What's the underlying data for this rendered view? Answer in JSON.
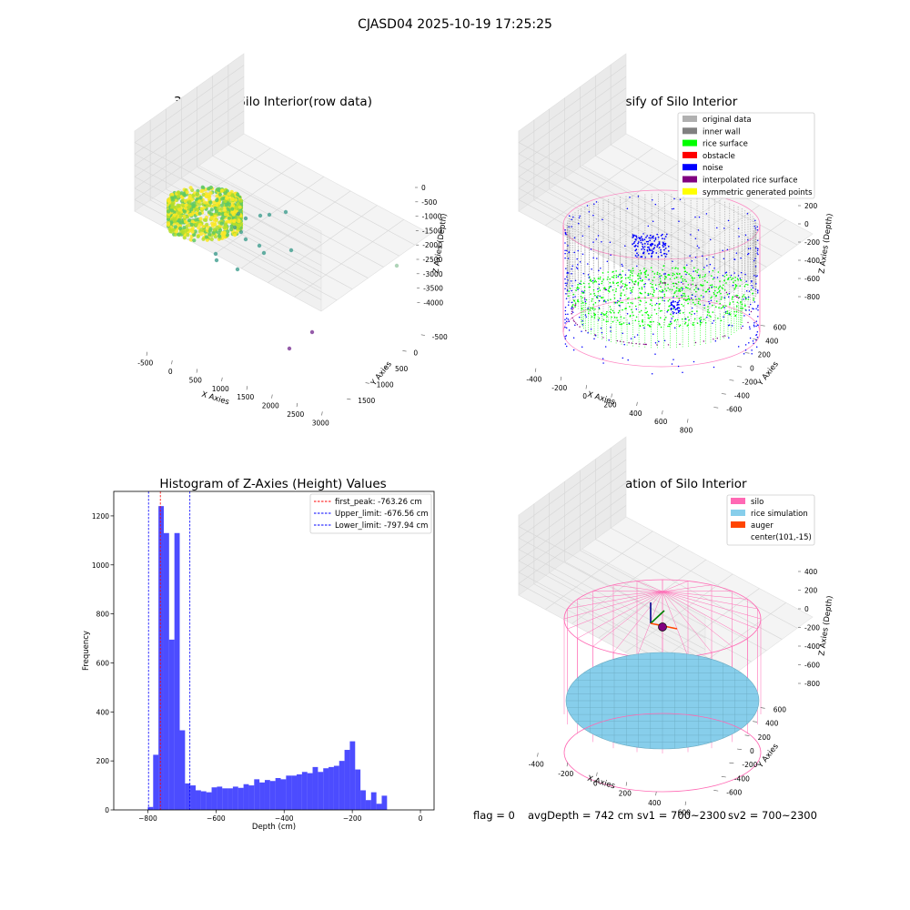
{
  "suptitle": "CJASD04 2025-10-19 17:25:25",
  "footer": {
    "flag": "flag = 0",
    "avg_depth": "avgDepth = 742 cm",
    "sv1": "sv1 = 700~2300",
    "sv2": "sv2 = 700~2300"
  },
  "chart_data": [
    {
      "type": "scatter",
      "title": "3D Plot of Silo Interior(row data)",
      "xlabel": "X Axies",
      "ylabel": "Y Axies",
      "zlabel": "Z Axies (Depth)",
      "x_ticks": [
        "-500",
        "0",
        "500",
        "1000",
        "1500",
        "2000",
        "2500",
        "3000"
      ],
      "y_ticks": [
        "-500",
        "0",
        "500",
        "1000",
        "1500"
      ],
      "z_ticks": [
        "0",
        "-500",
        "-1000",
        "-1500",
        "-2000",
        "-2500",
        "-3000",
        "-3500",
        "-4000"
      ],
      "xlim": [
        -700,
        3200
      ],
      "ylim": [
        -700,
        1800
      ],
      "zlim": [
        -4200,
        100
      ],
      "colormap": [
        "#7b3294",
        "#3e9e8f",
        "#5ec962",
        "#b5de2b",
        "#fde725"
      ],
      "notes": "dense ring of points near origin colored green-yellow, sparse outliers"
    },
    {
      "type": "scatter",
      "title": "3D classify of Silo Interior",
      "xlabel": "X Axies",
      "ylabel": "Y Axies",
      "zlabel": "Z Axies (Depth)",
      "x_ticks": [
        "-400",
        "-200",
        "0",
        "200",
        "400",
        "600",
        "800"
      ],
      "y_ticks": [
        "-600",
        "-400",
        "-200",
        "0",
        "200",
        "400",
        "600"
      ],
      "z_ticks": [
        "200",
        "0",
        "-200",
        "-400",
        "-600",
        "-800"
      ],
      "legend_position": "top-right",
      "legend": [
        {
          "name": "original data",
          "color": "#b0b0b0"
        },
        {
          "name": "inner wall",
          "color": "#808080"
        },
        {
          "name": "rice surface",
          "color": "#00ff00"
        },
        {
          "name": "obstacle",
          "color": "#ff0000"
        },
        {
          "name": "noise",
          "color": "#0000ff"
        },
        {
          "name": "interpolated rice surface",
          "color": "#800080"
        },
        {
          "name": "symmetric generated points",
          "color": "#ffff00"
        }
      ],
      "cylinder_color": "#ff69b4"
    },
    {
      "type": "bar",
      "title": "Histogram of Z-Axies (Height) Values",
      "xlabel": "Depth (cm)",
      "ylabel": "Frequency",
      "xlim": [
        -900,
        40
      ],
      "ylim": [
        0,
        1300
      ],
      "x_ticks": [
        -800,
        -600,
        -400,
        -200,
        0
      ],
      "y_ticks": [
        0,
        200,
        400,
        600,
        800,
        1000,
        1200
      ],
      "bin_width": 15.6,
      "bins_start": -800,
      "bar_color": "#0000ff",
      "bar_opacity": 0.7,
      "values": [
        12,
        225,
        1240,
        1130,
        695,
        1130,
        325,
        108,
        100,
        80,
        76,
        72,
        92,
        95,
        88,
        88,
        95,
        90,
        105,
        100,
        125,
        112,
        122,
        118,
        130,
        125,
        140,
        140,
        145,
        155,
        150,
        175,
        155,
        170,
        175,
        180,
        200,
        245,
        280,
        165,
        80,
        40,
        72,
        25,
        58
      ],
      "vlines": [
        {
          "name": "first_peak: -763.26 cm",
          "x": -763.26,
          "color": "#ff0000"
        },
        {
          "name": "Upper_limit: -676.56 cm",
          "x": -676.56,
          "color": "#0000ff"
        },
        {
          "name": "Lower_limit: -797.94 cm",
          "x": -797.94,
          "color": "#0000ff"
        }
      ],
      "legend_position": "top-right"
    },
    {
      "type": "scatter",
      "title": "3D simulation of Silo Interior",
      "xlabel": "X Axies",
      "ylabel": "Y Axies",
      "zlabel": "Z Axies (Depth)",
      "x_ticks": [
        "-400",
        "-200",
        "0",
        "200",
        "400",
        "600"
      ],
      "y_ticks": [
        "-600",
        "-400",
        "-200",
        "0",
        "200",
        "400",
        "600"
      ],
      "z_ticks": [
        "400",
        "200",
        "0",
        "-200",
        "-400",
        "-600",
        "-800"
      ],
      "legend_position": "top-right",
      "legend": [
        {
          "name": "silo",
          "color": "#ff69b4"
        },
        {
          "name": "rice simulation",
          "color": "#87ceeb"
        },
        {
          "name": "auger",
          "color": "#ff4500"
        },
        {
          "name": "center(101,-15)",
          "color": ""
        }
      ]
    }
  ]
}
